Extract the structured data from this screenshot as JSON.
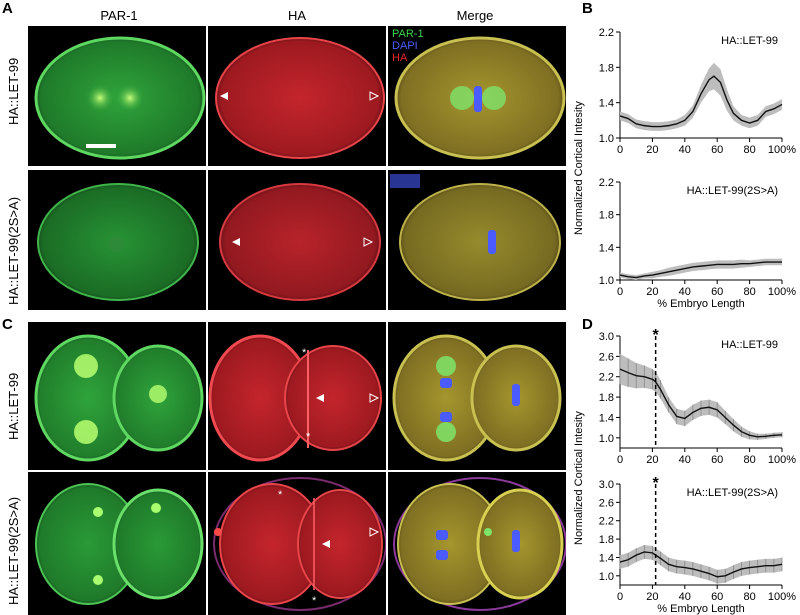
{
  "panels": {
    "A": "A",
    "B": "B",
    "C": "C",
    "D": "D"
  },
  "columns": [
    "PAR-1",
    "HA",
    "Merge"
  ],
  "rows": {
    "row1": "HA::LET-99",
    "row2": "HA::LET-99(2S>A)",
    "row3": "HA::LET-99",
    "row4": "HA::LET-99(2S>A)"
  },
  "legend": {
    "par1": "PAR-1",
    "dapi": "DAPI",
    "ha": "HA"
  },
  "colors": {
    "par1": "#3bd24a",
    "dapi": "#4a5cff",
    "ha": "#e8232d",
    "line": "#111111",
    "band": "#bdbdbd"
  },
  "chart_data": [
    {
      "id": "B-top",
      "type": "line",
      "title": "HA::LET-99",
      "xlabel": "",
      "ylabel": "Normalized Cortical Intesity",
      "xlim": [
        0,
        100
      ],
      "ylim": [
        1.0,
        2.2
      ],
      "xticks": [
        "0",
        "20",
        "40",
        "60",
        "80",
        "100%"
      ],
      "yticks": [
        "1.0",
        "1.4",
        "1.8",
        "2.2"
      ],
      "marker_x": null,
      "series": [
        {
          "x": [
            0,
            5,
            10,
            15,
            20,
            25,
            30,
            35,
            40,
            45,
            50,
            55,
            58,
            62,
            66,
            70,
            75,
            80,
            85,
            90,
            95,
            100
          ],
          "y": [
            1.25,
            1.22,
            1.16,
            1.14,
            1.13,
            1.13,
            1.14,
            1.16,
            1.2,
            1.3,
            1.5,
            1.66,
            1.7,
            1.63,
            1.43,
            1.28,
            1.2,
            1.17,
            1.2,
            1.3,
            1.33,
            1.38
          ],
          "err": [
            0.05,
            0.05,
            0.05,
            0.05,
            0.05,
            0.05,
            0.05,
            0.05,
            0.06,
            0.07,
            0.1,
            0.13,
            0.15,
            0.15,
            0.12,
            0.08,
            0.06,
            0.06,
            0.06,
            0.06,
            0.06,
            0.06
          ]
        }
      ]
    },
    {
      "id": "B-bottom",
      "type": "line",
      "title": "HA::LET-99(2S>A)",
      "xlabel": "% Embryo Length",
      "ylabel": "",
      "xlim": [
        0,
        100
      ],
      "ylim": [
        1.0,
        2.2
      ],
      "xticks": [
        "0",
        "20",
        "40",
        "60",
        "80",
        "100%"
      ],
      "yticks": [
        "1.0",
        "1.4",
        "1.8",
        "2.2"
      ],
      "marker_x": null,
      "series": [
        {
          "x": [
            0,
            5,
            10,
            15,
            20,
            25,
            30,
            35,
            40,
            45,
            50,
            55,
            60,
            65,
            70,
            75,
            80,
            85,
            90,
            95,
            100
          ],
          "y": [
            1.06,
            1.04,
            1.03,
            1.05,
            1.06,
            1.08,
            1.1,
            1.12,
            1.14,
            1.16,
            1.17,
            1.18,
            1.19,
            1.19,
            1.19,
            1.2,
            1.2,
            1.21,
            1.22,
            1.22,
            1.22
          ],
          "err": [
            0.03,
            0.03,
            0.03,
            0.03,
            0.04,
            0.04,
            0.05,
            0.05,
            0.05,
            0.05,
            0.05,
            0.05,
            0.05,
            0.05,
            0.05,
            0.05,
            0.04,
            0.04,
            0.04,
            0.04,
            0.04
          ]
        }
      ]
    },
    {
      "id": "D-top",
      "type": "line",
      "title": "HA::LET-99",
      "xlabel": "",
      "ylabel": "Normalized Cortical Intesity",
      "xlim": [
        0,
        100
      ],
      "ylim": [
        0.8,
        3.0
      ],
      "xticks": [
        "0",
        "20",
        "40",
        "60",
        "80",
        "100%"
      ],
      "yticks": [
        "1.0",
        "1.4",
        "1.8",
        "2.2",
        "2.6",
        "3.0"
      ],
      "marker_x": 22,
      "marker_label": "*",
      "series": [
        {
          "x": [
            0,
            5,
            10,
            15,
            20,
            22,
            25,
            30,
            35,
            40,
            45,
            50,
            55,
            60,
            65,
            70,
            75,
            80,
            85,
            90,
            95,
            100
          ],
          "y": [
            2.35,
            2.28,
            2.22,
            2.2,
            2.15,
            2.1,
            1.95,
            1.65,
            1.42,
            1.38,
            1.5,
            1.58,
            1.6,
            1.55,
            1.4,
            1.25,
            1.12,
            1.05,
            1.02,
            1.03,
            1.05,
            1.06
          ],
          "err": [
            0.3,
            0.28,
            0.25,
            0.22,
            0.2,
            0.2,
            0.18,
            0.15,
            0.15,
            0.15,
            0.15,
            0.15,
            0.15,
            0.15,
            0.13,
            0.12,
            0.1,
            0.08,
            0.06,
            0.05,
            0.05,
            0.05
          ]
        }
      ]
    },
    {
      "id": "D-bottom",
      "type": "line",
      "title": "HA::LET-99(2S>A)",
      "xlabel": "% Embryo Length",
      "ylabel": "",
      "xlim": [
        0,
        100
      ],
      "ylim": [
        0.8,
        3.0
      ],
      "xticks": [
        "0",
        "20",
        "40",
        "60",
        "80",
        "100%"
      ],
      "yticks": [
        "1.0",
        "1.4",
        "1.8",
        "2.2",
        "2.6",
        "3.0"
      ],
      "marker_x": 22,
      "marker_label": "*",
      "series": [
        {
          "x": [
            0,
            5,
            10,
            15,
            20,
            25,
            30,
            35,
            40,
            45,
            50,
            55,
            60,
            65,
            70,
            75,
            80,
            85,
            90,
            95,
            100
          ],
          "y": [
            1.3,
            1.35,
            1.45,
            1.52,
            1.5,
            1.38,
            1.25,
            1.2,
            1.18,
            1.15,
            1.1,
            1.05,
            0.98,
            1.0,
            1.08,
            1.15,
            1.18,
            1.2,
            1.22,
            1.22,
            1.25
          ],
          "err": [
            0.15,
            0.15,
            0.15,
            0.15,
            0.15,
            0.15,
            0.15,
            0.15,
            0.15,
            0.15,
            0.15,
            0.15,
            0.15,
            0.15,
            0.15,
            0.15,
            0.15,
            0.15,
            0.15,
            0.15,
            0.15
          ]
        }
      ]
    }
  ]
}
